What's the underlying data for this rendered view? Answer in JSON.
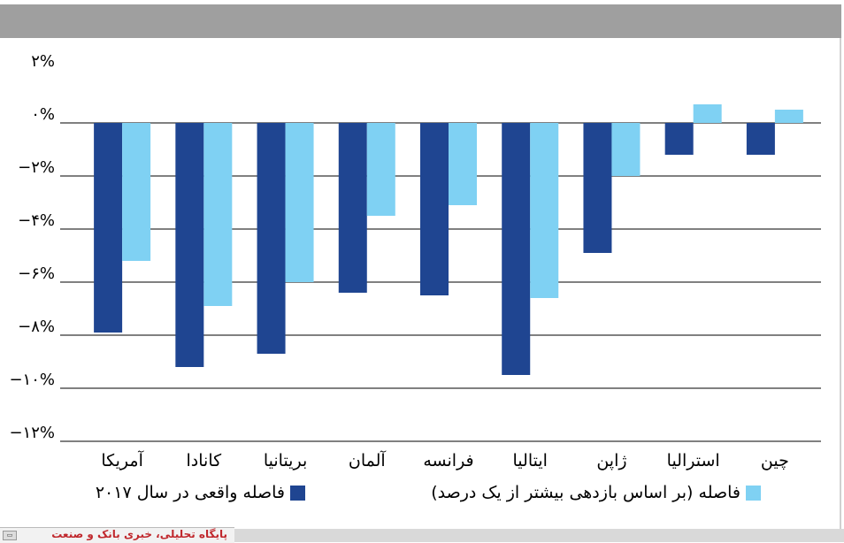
{
  "chart_data": {
    "type": "bar",
    "categories": [
      "آمریکا",
      "کانادا",
      "بریتانیا",
      "آلمان",
      "فرانسه",
      "ایتالیا",
      "ژاپن",
      "استرالیا",
      "چین"
    ],
    "series": [
      {
        "name": "فاصله واقعی در سال ۲۰۱۷",
        "color": "#1f4591",
        "values": [
          -7.9,
          -9.2,
          -8.7,
          -6.4,
          -6.5,
          -9.5,
          -4.9,
          -1.2,
          -1.2
        ]
      },
      {
        "name": "فاصله (بر اساس بازدهی بیشتر از یک درصد)",
        "color": "#7fd1f3",
        "values": [
          -5.2,
          -6.9,
          -6.0,
          -3.5,
          -3.1,
          -6.6,
          -2.0,
          0.7,
          0.5
        ]
      }
    ],
    "ylim": [
      -12,
      2
    ],
    "yticks": [
      2,
      0,
      -2,
      -4,
      -6,
      -8,
      -10,
      -12
    ],
    "ytick_labels": [
      "۲%",
      "۰%",
      "−۲%",
      "−۴%",
      "−۶%",
      "−۸%",
      "−۱۰%",
      "−۱۲%"
    ],
    "grid": true,
    "legend_position": "bottom"
  },
  "footer": {
    "logo_text": "پایگاه تحلیلی، خبری بانک و صنعت",
    "logo_icon": "flag-icon"
  }
}
